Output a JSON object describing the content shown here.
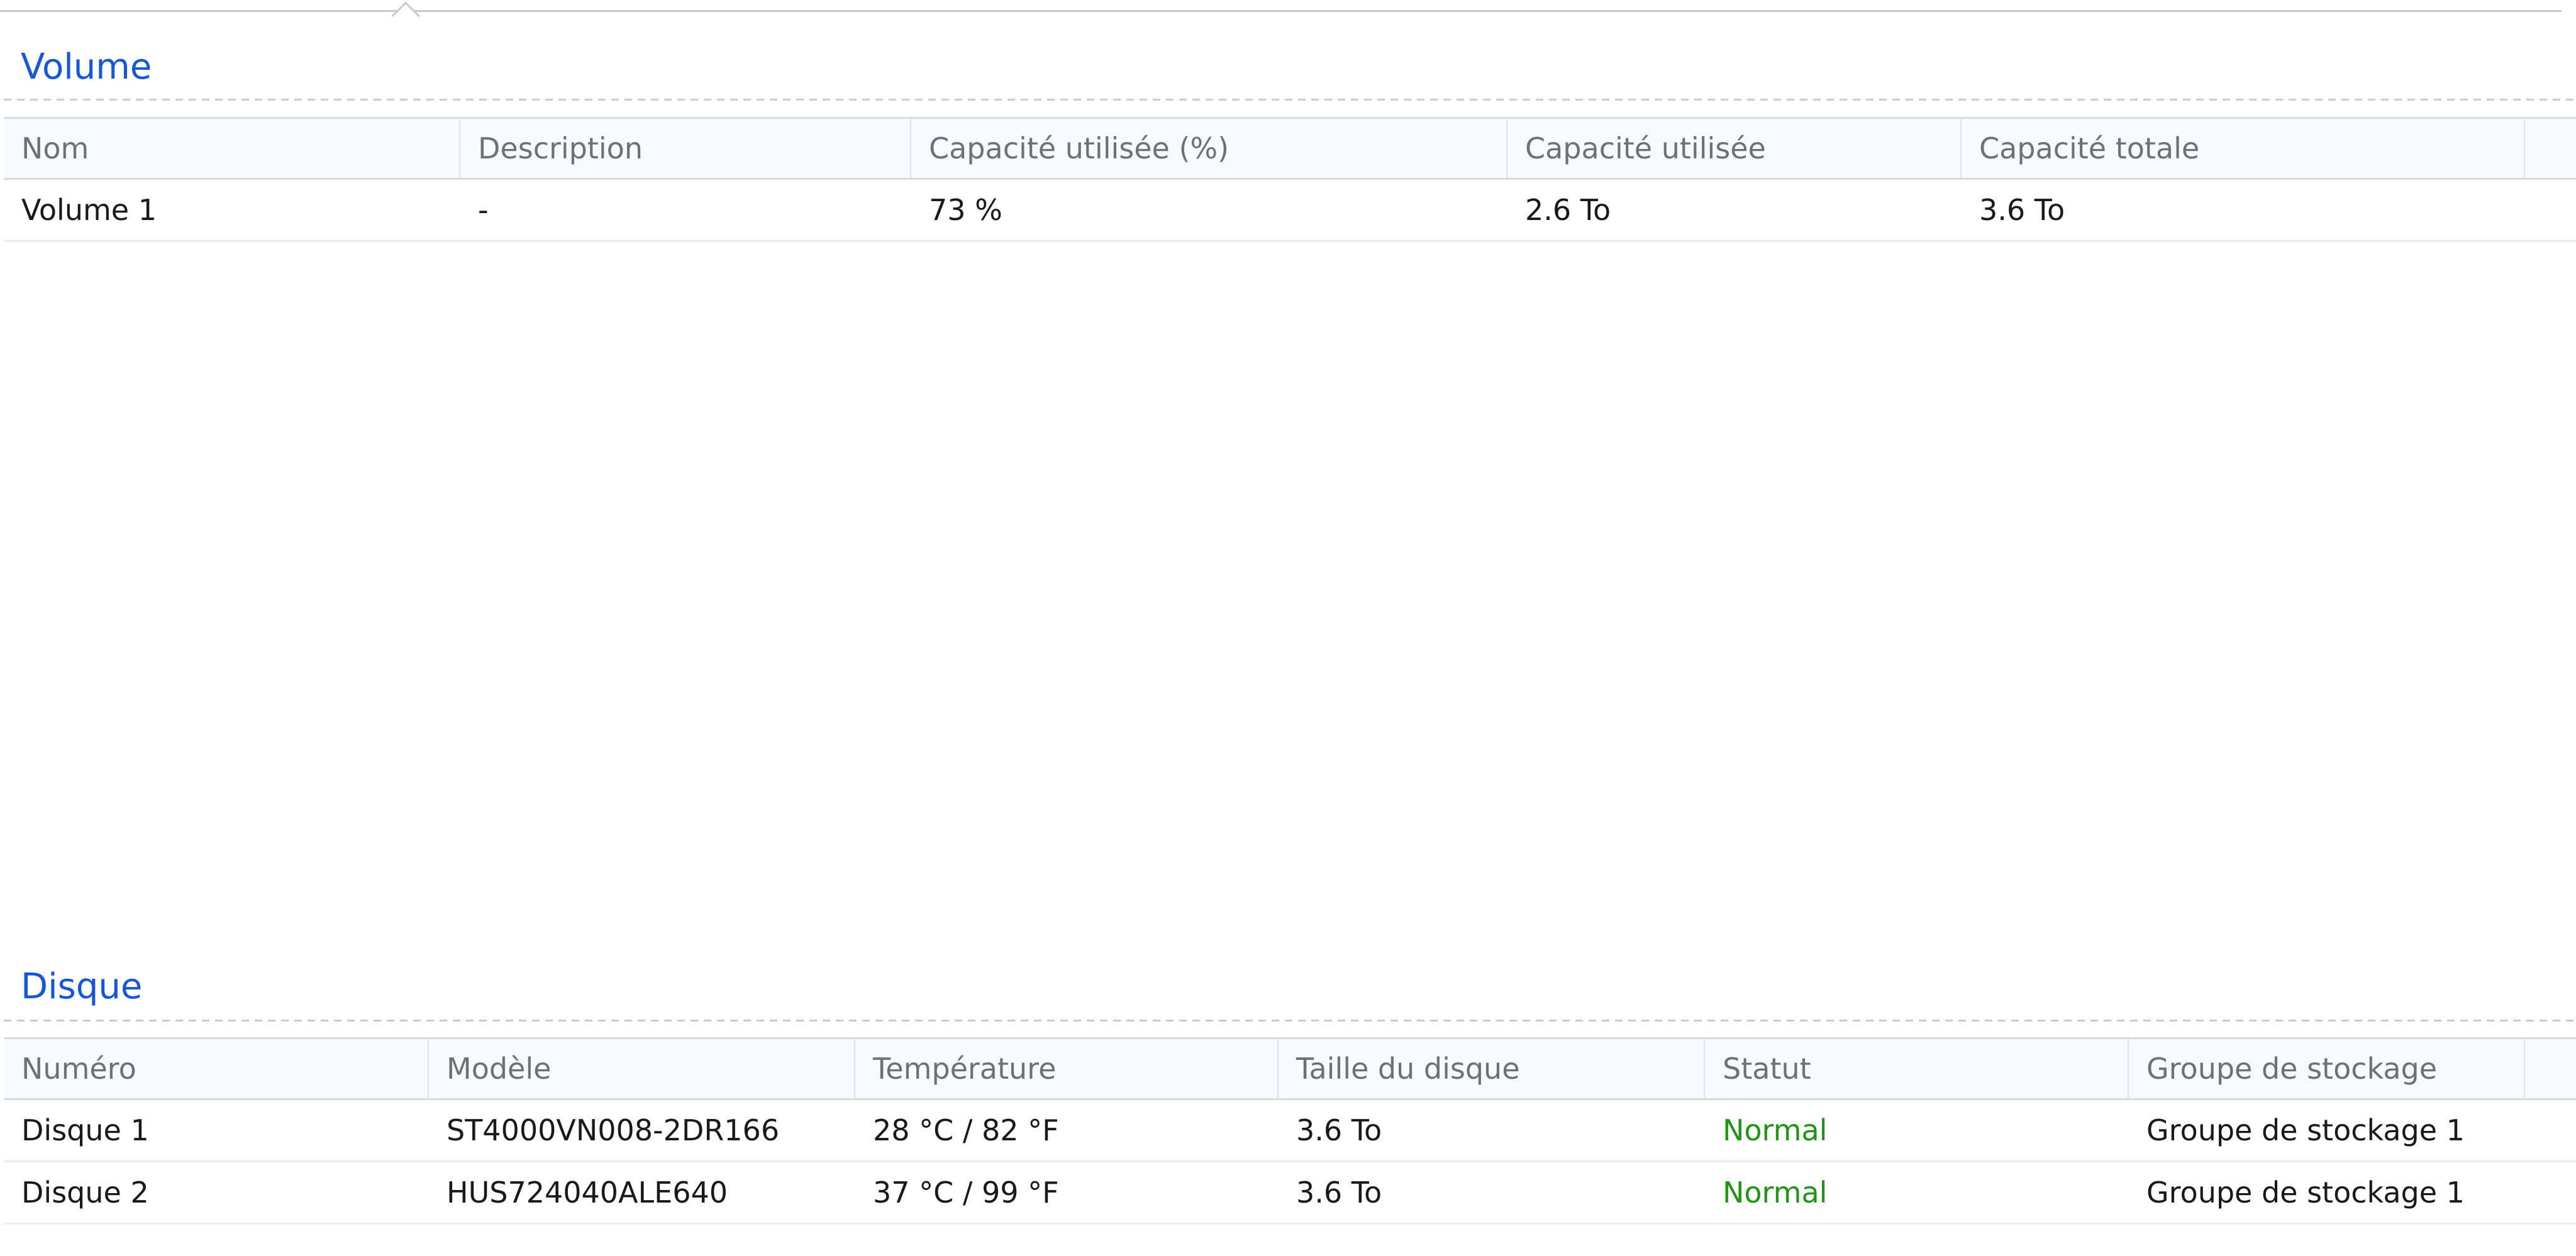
{
  "colors": {
    "section_title_blue": "#1657d8",
    "status_normal_green": "#229415",
    "header_text_gray": "#6d7176",
    "body_text": "#17191b",
    "header_background": "#f8f9fa",
    "border_gray": "#d8dce1"
  },
  "volume": {
    "title": "Volume",
    "columns": [
      "Nom",
      "Description",
      "Capacité utilisée (%)",
      "Capacité utilisée",
      "Capacité totale"
    ],
    "rows": [
      {
        "name": "Volume 1",
        "description": "-",
        "used_pct": "73 %",
        "used": "2.6 To",
        "total": "3.6 To"
      }
    ]
  },
  "disque": {
    "title": "Disque",
    "columns": [
      "Numéro",
      "Modèle",
      "Température",
      "Taille du disque",
      "Statut",
      "Groupe de stockage"
    ],
    "rows": [
      {
        "number": "Disque 1",
        "model": "ST4000VN008-2DR166",
        "temperature": "28 °C / 82 °F",
        "size": "3.6 To",
        "status": "Normal",
        "storage_group": "Groupe de stockage 1"
      },
      {
        "number": "Disque 2",
        "model": "HUS724040ALE640",
        "temperature": "37 °C / 99 °F",
        "size": "3.6 To",
        "status": "Normal",
        "storage_group": "Groupe de stockage 1"
      }
    ]
  }
}
